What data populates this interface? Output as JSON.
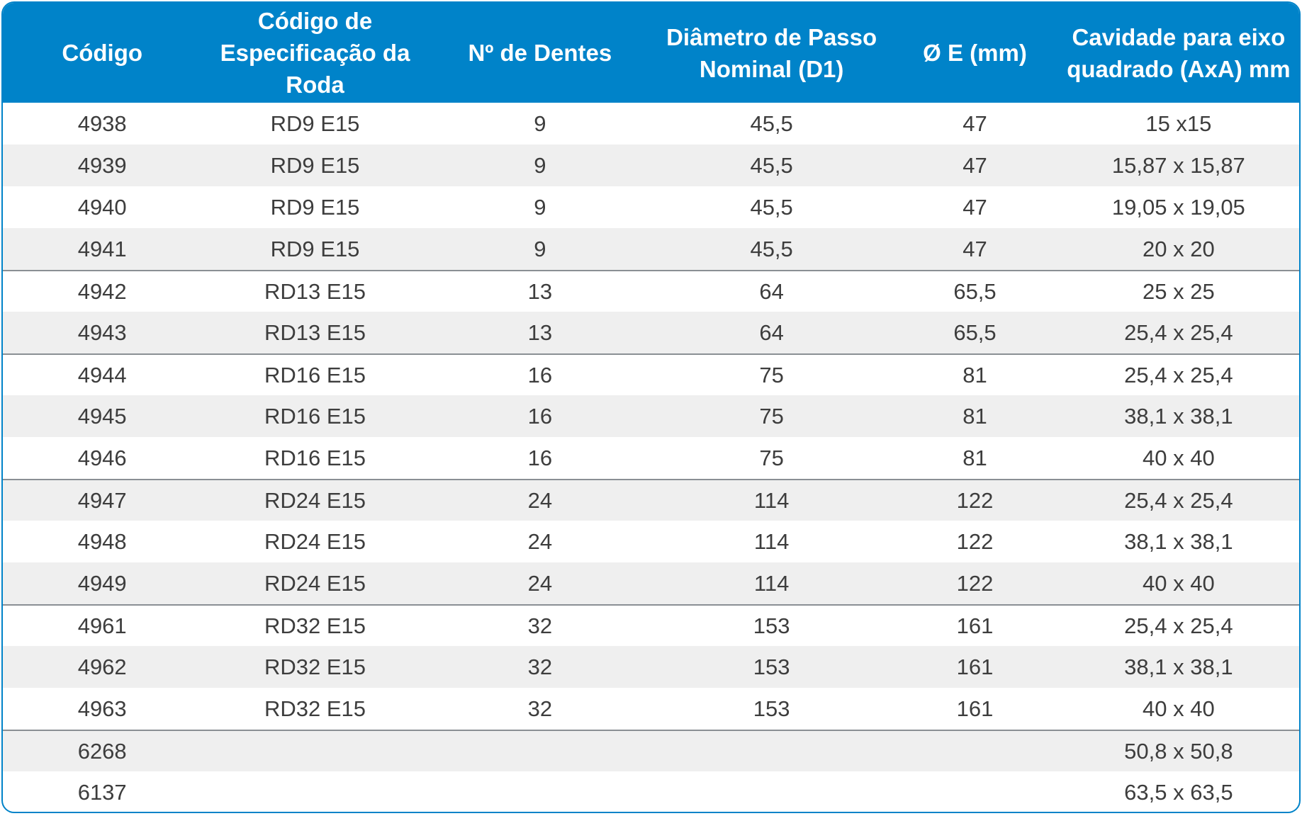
{
  "table": {
    "headers": [
      "Código",
      "Código de Especificação da Roda",
      "Nº de Dentes",
      "Diâmetro de Passo Nominal (D1)",
      "Ø E (mm)",
      "Cavidade para eixo quadrado (AxA) mm"
    ],
    "rows": [
      [
        "4938",
        "RD9 E15",
        "9",
        "45,5",
        "47",
        "15 x15"
      ],
      [
        "4939",
        "RD9 E15",
        "9",
        "45,5",
        "47",
        "15,87 x 15,87"
      ],
      [
        "4940",
        "RD9 E15",
        "9",
        "45,5",
        "47",
        "19,05 x 19,05"
      ],
      [
        "4941",
        "RD9 E15",
        "9",
        "45,5",
        "47",
        "20 x 20"
      ],
      [
        "4942",
        "RD13 E15",
        "13",
        "64",
        "65,5",
        "25 x 25"
      ],
      [
        "4943",
        "RD13 E15",
        "13",
        "64",
        "65,5",
        "25,4 x 25,4"
      ],
      [
        "4944",
        "RD16 E15",
        "16",
        "75",
        "81",
        "25,4 x 25,4"
      ],
      [
        "4945",
        "RD16 E15",
        "16",
        "75",
        "81",
        "38,1 x 38,1"
      ],
      [
        "4946",
        "RD16 E15",
        "16",
        "75",
        "81",
        "40 x 40"
      ],
      [
        "4947",
        "RD24 E15",
        "24",
        "114",
        "122",
        "25,4 x 25,4"
      ],
      [
        "4948",
        "RD24 E15",
        "24",
        "114",
        "122",
        "38,1 x 38,1"
      ],
      [
        "4949",
        "RD24 E15",
        "24",
        "114",
        "122",
        "40 x 40"
      ],
      [
        "4961",
        "RD32 E15",
        "32",
        "153",
        "161",
        "25,4 x 25,4"
      ],
      [
        "4962",
        "RD32 E15",
        "32",
        "153",
        "161",
        "38,1 x 38,1"
      ],
      [
        "4963",
        "RD32 E15",
        "32",
        "153",
        "161",
        "40 x 40"
      ],
      [
        "6268",
        "",
        "",
        "",
        "",
        "50,8 x 50,8"
      ],
      [
        "6137",
        "",
        "",
        "",
        "",
        "63,5 x 63,5"
      ]
    ]
  },
  "colors": {
    "header_bg": "#0083c9",
    "header_text": "#ffffff",
    "row_alt_bg": "#efefef",
    "cell_text": "#3d3d3d",
    "separator": "#8a8f94"
  }
}
